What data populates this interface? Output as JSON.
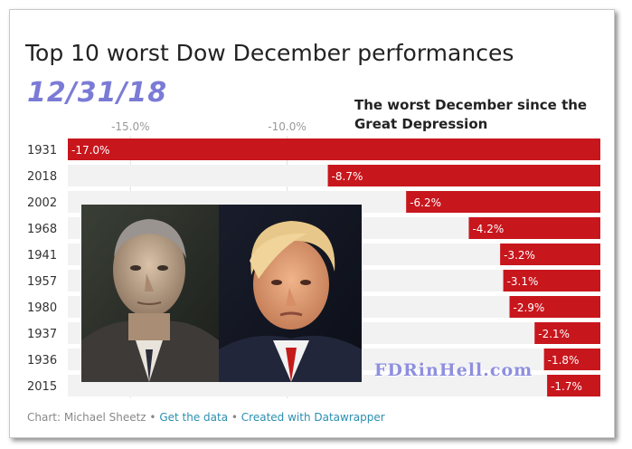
{
  "header": {
    "title": "Top 10 worst Dow December performances",
    "date": "12/31/18",
    "annotation_line1": "The worst December since the",
    "annotation_line2": "Great Depression"
  },
  "chart_data": {
    "type": "bar",
    "orientation": "horizontal",
    "title": "Top 10 worst Dow December performances",
    "categories": [
      "1931",
      "2018",
      "2002",
      "1968",
      "1941",
      "1957",
      "1980",
      "1937",
      "1936",
      "2015"
    ],
    "values": [
      -17.0,
      -8.7,
      -6.2,
      -4.2,
      -3.2,
      -3.1,
      -2.9,
      -2.1,
      -1.8,
      -1.7
    ],
    "value_labels": [
      "-17.0%",
      "-8.7%",
      "-6.2%",
      "-4.2%",
      "-3.2%",
      "-3.1%",
      "-2.9%",
      "-2.1%",
      "-1.8%",
      "-1.7%"
    ],
    "x_ticks": [
      -15,
      -10
    ],
    "x_tick_labels": [
      "-15.0%",
      "-10.0%"
    ],
    "xlim": [
      -17.0,
      0
    ],
    "grid": true,
    "bar_color": "#c8161d",
    "track_color": "#f2f2f2"
  },
  "overlay": {
    "watermark": "FDRinHell.com"
  },
  "footer": {
    "credit": "Chart: Michael Sheetz",
    "sep1": " • ",
    "get_data": "Get the data",
    "sep2": " • ",
    "created_with": "Created with Datawrapper"
  },
  "colors": {
    "date": "#7b7bd6",
    "link": "#2a8fb0",
    "watermark": "#8f8fe0"
  }
}
